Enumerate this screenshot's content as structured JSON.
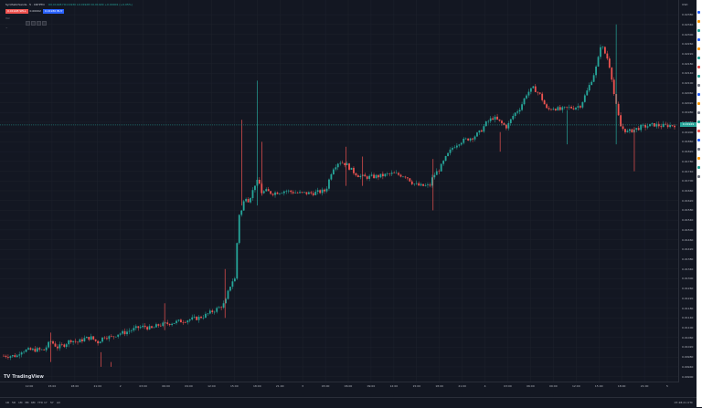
{
  "header": {
    "symbol": "SyntheticSands · 5 · CRYPTO",
    "ohlc": "O0.01928 H0.01930 L0.01928 C0.01929 +0.00001 (+0.05%)",
    "sell_price": "0.01928",
    "sell_label": "SELL",
    "spread": "0.00002",
    "buy_price": "0.01930",
    "buy_label": "BUY",
    "volume_label": "Vol",
    "collapse_label": "^"
  },
  "right_toolbar": {
    "colors": [
      "#2962ff",
      "#ff9800",
      "#26a69a",
      "#2962ff",
      "#ff9800",
      "#26a69a",
      "#ef5350",
      "#26a69a",
      "#787b86",
      "#2962ff",
      "#ff9800",
      "#787b86",
      "#26a69a",
      "#ef5350",
      "#2962ff",
      "#787b86",
      "#ff9800",
      "#26a69a",
      "#787b86"
    ]
  },
  "chart_data": {
    "type": "candlestick",
    "price_scale_label": "USD",
    "current_price": "0.01929",
    "y_ticks": [
      "0.02380",
      "0.02340",
      "0.02300",
      "0.02260",
      "0.02220",
      "0.02180",
      "0.02140",
      "0.02100",
      "0.02060",
      "0.02020",
      "0.01980",
      "0.01940",
      "0.01900",
      "0.01860",
      "0.01820",
      "0.01780",
      "0.01740",
      "0.01700",
      "0.01660",
      "0.01620",
      "0.01580",
      "0.01540",
      "0.01500",
      "0.01460",
      "0.01420",
      "0.01380",
      "0.01340",
      "0.01300",
      "0.01260",
      "0.01220",
      "0.01180",
      "0.01140",
      "0.01100",
      "0.01060",
      "0.01020",
      "0.00980",
      "0.00940",
      "0.00900"
    ],
    "x_ticks": [
      "12:00",
      "15:00",
      "18:00",
      "21:00",
      "2",
      "03:00",
      "06:00",
      "09:00",
      "12:00",
      "15:00",
      "18:00",
      "21:00",
      "3",
      "03:00",
      "06:00",
      "09:00",
      "12:00",
      "15:00",
      "18:00",
      "21:00",
      "4",
      "03:00",
      "06:00",
      "09:00",
      "12:00",
      "15:00",
      "18:00",
      "21:00",
      "5"
    ],
    "ylim": [
      0.0088,
      0.0244
    ],
    "up_color": "#26a69a",
    "down_color": "#ef5350",
    "price_path": [
      [
        0,
        0.00985
      ],
      [
        0.02,
        0.00985
      ],
      [
        0.025,
        0.01005
      ],
      [
        0.035,
        0.01008
      ],
      [
        0.05,
        0.0101
      ],
      [
        0.06,
        0.01008
      ],
      [
        0.07,
        0.01045
      ],
      [
        0.08,
        0.0102
      ],
      [
        0.09,
        0.0103
      ],
      [
        0.1,
        0.0105
      ],
      [
        0.11,
        0.0104
      ],
      [
        0.12,
        0.01055
      ],
      [
        0.13,
        0.0106
      ],
      [
        0.14,
        0.0104
      ],
      [
        0.15,
        0.01065
      ],
      [
        0.16,
        0.0106
      ],
      [
        0.17,
        0.01075
      ],
      [
        0.18,
        0.0108
      ],
      [
        0.19,
        0.0109
      ],
      [
        0.2,
        0.011
      ],
      [
        0.21,
        0.01105
      ],
      [
        0.22,
        0.01095
      ],
      [
        0.23,
        0.0111
      ],
      [
        0.24,
        0.01115
      ],
      [
        0.25,
        0.0112
      ],
      [
        0.27,
        0.0113
      ],
      [
        0.29,
        0.0114
      ],
      [
        0.3,
        0.0115
      ],
      [
        0.31,
        0.01165
      ],
      [
        0.32,
        0.0118
      ],
      [
        0.33,
        0.012
      ],
      [
        0.335,
        0.0125
      ],
      [
        0.34,
        0.0129
      ],
      [
        0.345,
        0.013
      ],
      [
        0.35,
        0.0156
      ],
      [
        0.355,
        0.0158
      ],
      [
        0.36,
        0.0164
      ],
      [
        0.365,
        0.0162
      ],
      [
        0.37,
        0.0165
      ],
      [
        0.375,
        0.0169
      ],
      [
        0.38,
        0.017
      ],
      [
        0.385,
        0.0165
      ],
      [
        0.39,
        0.0166
      ],
      [
        0.4,
        0.0165
      ],
      [
        0.42,
        0.0166
      ],
      [
        0.44,
        0.0165
      ],
      [
        0.46,
        0.0165
      ],
      [
        0.48,
        0.0166
      ],
      [
        0.49,
        0.0175
      ],
      [
        0.5,
        0.0178
      ],
      [
        0.51,
        0.0177
      ],
      [
        0.52,
        0.0174
      ],
      [
        0.53,
        0.0172
      ],
      [
        0.54,
        0.01715
      ],
      [
        0.56,
        0.0172
      ],
      [
        0.58,
        0.0173
      ],
      [
        0.6,
        0.0172
      ],
      [
        0.61,
        0.0169
      ],
      [
        0.62,
        0.0168
      ],
      [
        0.635,
        0.0168
      ],
      [
        0.64,
        0.0172
      ],
      [
        0.65,
        0.0175
      ],
      [
        0.66,
        0.018
      ],
      [
        0.67,
        0.0184
      ],
      [
        0.68,
        0.0186
      ],
      [
        0.69,
        0.0187
      ],
      [
        0.7,
        0.0188
      ],
      [
        0.71,
        0.019
      ],
      [
        0.72,
        0.0194
      ],
      [
        0.73,
        0.0196
      ],
      [
        0.74,
        0.0194
      ],
      [
        0.75,
        0.0192
      ],
      [
        0.76,
        0.0197
      ],
      [
        0.77,
        0.02
      ],
      [
        0.78,
        0.0206
      ],
      [
        0.79,
        0.0208
      ],
      [
        0.8,
        0.0205
      ],
      [
        0.81,
        0.0199
      ],
      [
        0.82,
        0.02
      ],
      [
        0.83,
        0.0199
      ],
      [
        0.84,
        0.02
      ],
      [
        0.85,
        0.02
      ],
      [
        0.86,
        0.0201
      ],
      [
        0.87,
        0.0207
      ],
      [
        0.88,
        0.0214
      ],
      [
        0.885,
        0.0218
      ],
      [
        0.89,
        0.0226
      ],
      [
        0.895,
        0.0223
      ],
      [
        0.9,
        0.022
      ],
      [
        0.905,
        0.0215
      ],
      [
        0.91,
        0.0205
      ],
      [
        0.915,
        0.0198
      ],
      [
        0.92,
        0.0192
      ],
      [
        0.93,
        0.019
      ],
      [
        0.94,
        0.0191
      ],
      [
        0.95,
        0.0192
      ],
      [
        0.97,
        0.0193
      ],
      [
        0.98,
        0.01925
      ],
      [
        1.0,
        0.01929
      ]
    ],
    "spikes": [
      [
        0.07,
        0.0108,
        0.0096
      ],
      [
        0.145,
        0.01,
        0.0094
      ],
      [
        0.16,
        0.0096,
        0.0094
      ],
      [
        0.24,
        0.012,
        0.0109
      ],
      [
        0.33,
        0.0134,
        0.0114
      ],
      [
        0.355,
        0.0195,
        0.016
      ],
      [
        0.378,
        0.0211,
        0.016
      ],
      [
        0.385,
        0.0186,
        0.0164
      ],
      [
        0.51,
        0.0184,
        0.0168
      ],
      [
        0.535,
        0.018,
        0.0168
      ],
      [
        0.64,
        0.0179,
        0.0158
      ],
      [
        0.74,
        0.019,
        0.0182
      ],
      [
        0.84,
        0.0199,
        0.0185
      ],
      [
        0.913,
        0.0234,
        0.0185
      ],
      [
        0.94,
        0.0192,
        0.0174
      ]
    ]
  },
  "branding": {
    "logo_text": "TradingView",
    "logo_mark": "TV"
  },
  "bottom_bar": {
    "ranges": [
      "1D",
      "5D",
      "1M",
      "3M",
      "6M",
      "YTD",
      "1Y",
      "5Y",
      "All"
    ],
    "clock": "07:28:21 UTC"
  }
}
